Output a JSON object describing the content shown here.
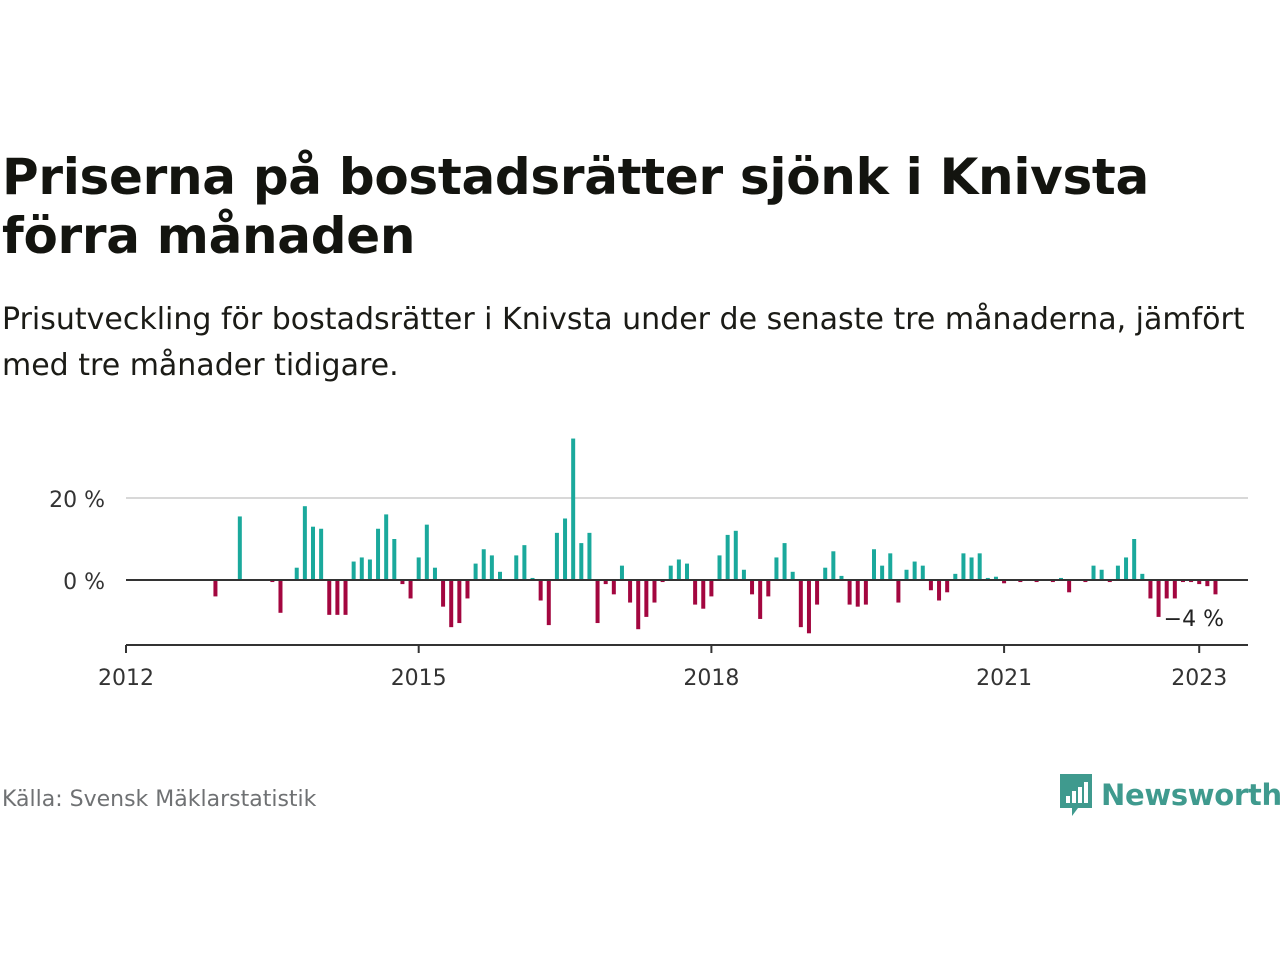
{
  "title": "Priserna på bostadsrätter sjönk i Knivsta förra månaden",
  "subtitle": "Prisutveckling för bostadsrätter i Knivsta under de senaste tre månaderna, jämfört med tre månader tidigare.",
  "source": "Källa: Svensk Mäklarstatistik",
  "brand": "Newsworthy",
  "colors": {
    "positive": "#1aa99c",
    "negative": "#a3063f",
    "grid": "#d8d8d8",
    "axis": "#333333",
    "brand": "#3f9a8e"
  },
  "chart_data": {
    "type": "bar",
    "x_ticks": [
      "2012",
      "2015",
      "2018",
      "2021",
      "2023"
    ],
    "y_ticks": [
      {
        "value": 0,
        "label": "0 %"
      },
      {
        "value": 20,
        "label": "20 %"
      }
    ],
    "ylim": [
      -15,
      35
    ],
    "xlim": [
      "2012-01",
      "2023-07"
    ],
    "annotation": "−4 %",
    "grid": "horizontal",
    "series": [
      {
        "points": [
          [
            "2012-01",
            0
          ],
          [
            "2012-02",
            0
          ],
          [
            "2012-03",
            0
          ],
          [
            "2012-04",
            0
          ],
          [
            "2012-05",
            0
          ],
          [
            "2012-06",
            0
          ],
          [
            "2012-07",
            0
          ],
          [
            "2012-08",
            0
          ],
          [
            "2012-09",
            0
          ],
          [
            "2012-10",
            0
          ],
          [
            "2012-11",
            0
          ],
          [
            "2012-12",
            -4
          ],
          [
            "2013-01",
            0
          ],
          [
            "2013-02",
            0
          ],
          [
            "2013-03",
            15.5
          ],
          [
            "2013-04",
            0
          ],
          [
            "2013-05",
            0
          ],
          [
            "2013-06",
            0
          ],
          [
            "2013-07",
            -0.5
          ],
          [
            "2013-08",
            -8
          ],
          [
            "2013-09",
            0
          ],
          [
            "2013-10",
            3
          ],
          [
            "2013-11",
            18
          ],
          [
            "2013-12",
            13
          ],
          [
            "2014-01",
            12.5
          ],
          [
            "2014-02",
            -8.5
          ],
          [
            "2014-03",
            -8.5
          ],
          [
            "2014-04",
            -8.5
          ],
          [
            "2014-05",
            4.5
          ],
          [
            "2014-06",
            5.5
          ],
          [
            "2014-07",
            5
          ],
          [
            "2014-08",
            12.5
          ],
          [
            "2014-09",
            16
          ],
          [
            "2014-10",
            10
          ],
          [
            "2014-11",
            -1
          ],
          [
            "2014-12",
            -4.5
          ],
          [
            "2015-01",
            5.5
          ],
          [
            "2015-02",
            13.5
          ],
          [
            "2015-03",
            3
          ],
          [
            "2015-04",
            -6.5
          ],
          [
            "2015-05",
            -11.5
          ],
          [
            "2015-06",
            -10.5
          ],
          [
            "2015-07",
            -4.5
          ],
          [
            "2015-08",
            4
          ],
          [
            "2015-09",
            7.5
          ],
          [
            "2015-10",
            6
          ],
          [
            "2015-11",
            2
          ],
          [
            "2015-12",
            0
          ],
          [
            "2016-01",
            6
          ],
          [
            "2016-02",
            8.5
          ],
          [
            "2016-03",
            0.5
          ],
          [
            "2016-04",
            -5
          ],
          [
            "2016-05",
            -11
          ],
          [
            "2016-06",
            11.5
          ],
          [
            "2016-07",
            15
          ],
          [
            "2016-08",
            34.5
          ],
          [
            "2016-09",
            9
          ],
          [
            "2016-10",
            11.5
          ],
          [
            "2016-11",
            -10.5
          ],
          [
            "2016-12",
            -1
          ],
          [
            "2017-01",
            -3.5
          ],
          [
            "2017-02",
            3.5
          ],
          [
            "2017-03",
            -5.5
          ],
          [
            "2017-04",
            -12
          ],
          [
            "2017-05",
            -9
          ],
          [
            "2017-06",
            -5.5
          ],
          [
            "2017-07",
            -0.5
          ],
          [
            "2017-08",
            3.5
          ],
          [
            "2017-09",
            5
          ],
          [
            "2017-10",
            4
          ],
          [
            "2017-11",
            -6
          ],
          [
            "2017-12",
            -7
          ],
          [
            "2018-01",
            -4
          ],
          [
            "2018-02",
            6
          ],
          [
            "2018-03",
            11
          ],
          [
            "2018-04",
            12
          ],
          [
            "2018-05",
            2.5
          ],
          [
            "2018-06",
            -3.5
          ],
          [
            "2018-07",
            -9.5
          ],
          [
            "2018-08",
            -4
          ],
          [
            "2018-09",
            5.5
          ],
          [
            "2018-10",
            9
          ],
          [
            "2018-11",
            2
          ],
          [
            "2018-12",
            -11.5
          ],
          [
            "2019-01",
            -13
          ],
          [
            "2019-02",
            -6
          ],
          [
            "2019-03",
            3
          ],
          [
            "2019-04",
            7
          ],
          [
            "2019-05",
            1
          ],
          [
            "2019-06",
            -6
          ],
          [
            "2019-07",
            -6.5
          ],
          [
            "2019-08",
            -6
          ],
          [
            "2019-09",
            7.5
          ],
          [
            "2019-10",
            3.5
          ],
          [
            "2019-11",
            6.5
          ],
          [
            "2019-12",
            -5.5
          ],
          [
            "2020-01",
            2.5
          ],
          [
            "2020-02",
            4.5
          ],
          [
            "2020-03",
            3.5
          ],
          [
            "2020-04",
            -2.5
          ],
          [
            "2020-05",
            -5
          ],
          [
            "2020-06",
            -3
          ],
          [
            "2020-07",
            1.5
          ],
          [
            "2020-08",
            6.5
          ],
          [
            "2020-09",
            5.5
          ],
          [
            "2020-10",
            6.5
          ],
          [
            "2020-11",
            0.5
          ],
          [
            "2020-12",
            0.8
          ],
          [
            "2021-01",
            -0.8
          ],
          [
            "2021-02",
            0
          ],
          [
            "2021-03",
            -0.5
          ],
          [
            "2021-04",
            0
          ],
          [
            "2021-05",
            -0.5
          ],
          [
            "2021-06",
            0
          ],
          [
            "2021-07",
            -0.5
          ],
          [
            "2021-08",
            0.5
          ],
          [
            "2021-09",
            -3
          ],
          [
            "2021-10",
            0
          ],
          [
            "2021-11",
            -0.5
          ],
          [
            "2021-12",
            3.5
          ],
          [
            "2022-01",
            2.5
          ],
          [
            "2022-02",
            -0.5
          ],
          [
            "2022-03",
            3.5
          ],
          [
            "2022-04",
            5.5
          ],
          [
            "2022-05",
            10
          ],
          [
            "2022-06",
            1.5
          ],
          [
            "2022-07",
            -4.5
          ],
          [
            "2022-08",
            -9
          ],
          [
            "2022-09",
            -4.5
          ],
          [
            "2022-10",
            -4.5
          ],
          [
            "2022-11",
            -0.5
          ],
          [
            "2022-12",
            -0.5
          ],
          [
            "2023-01",
            -1
          ],
          [
            "2023-02",
            -1.5
          ],
          [
            "2023-03",
            -3.5
          ]
        ]
      }
    ]
  }
}
